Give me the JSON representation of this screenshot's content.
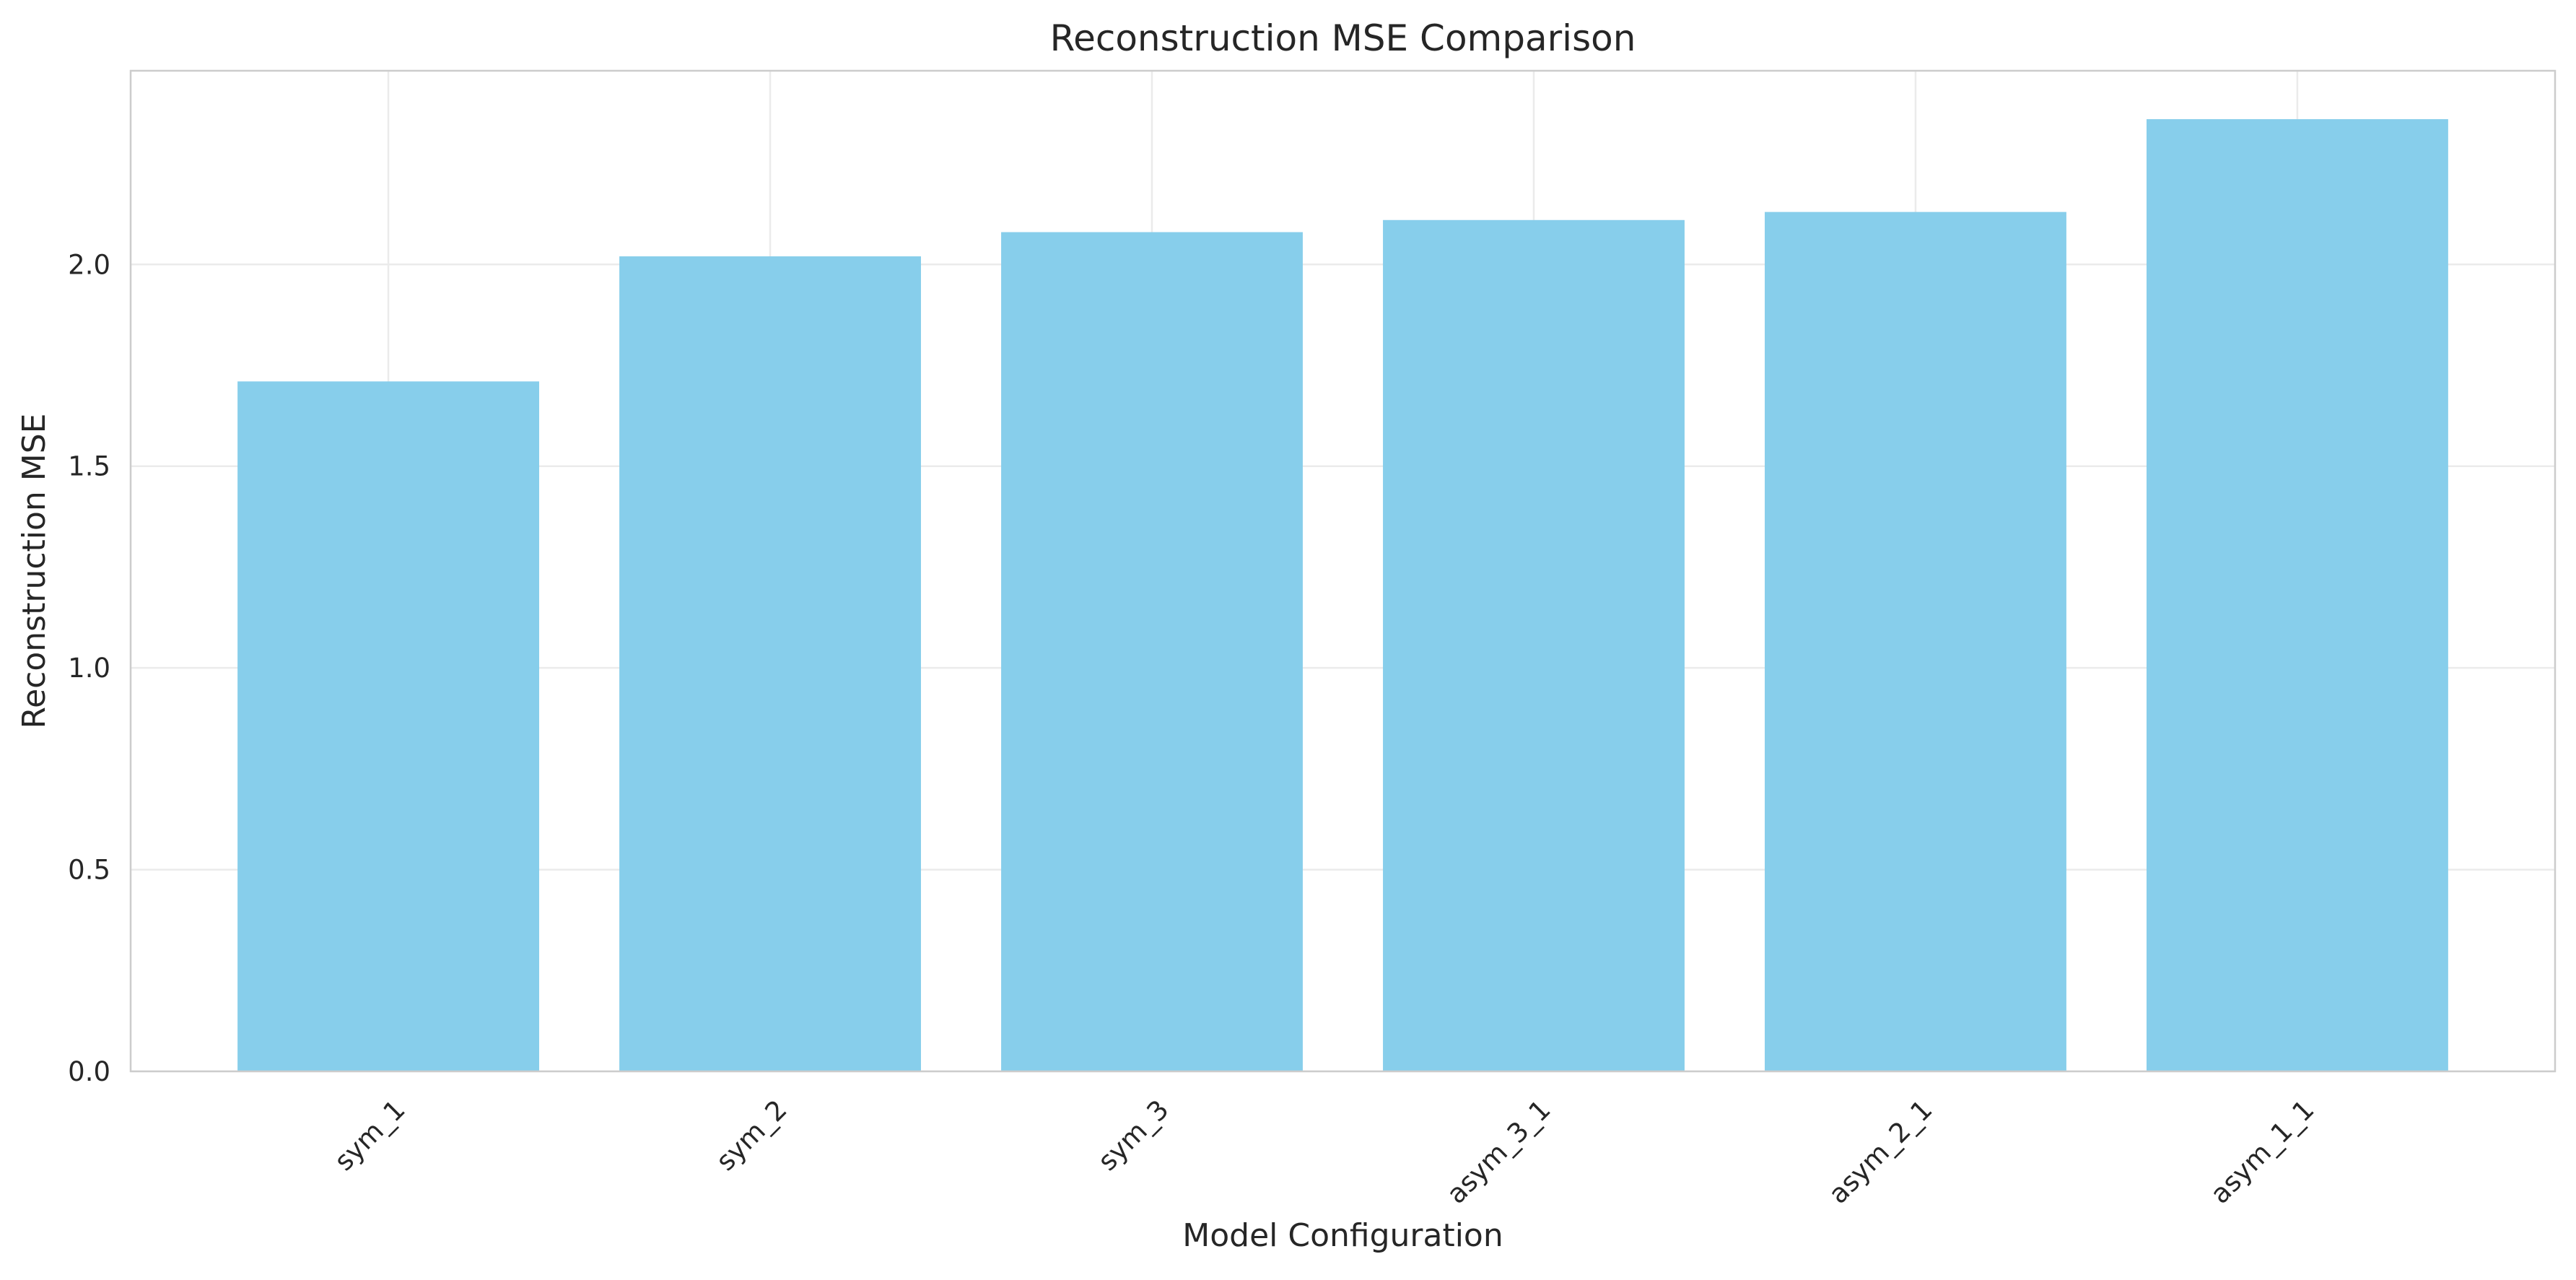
{
  "chart_data": {
    "type": "bar",
    "title": "Reconstruction MSE Comparison",
    "xlabel": "Model Configuration",
    "ylabel": "Reconstruction MSE",
    "categories": [
      "sym_1",
      "sym_2",
      "sym_3",
      "asym_3_1",
      "asym_2_1",
      "asym_1_1"
    ],
    "values": [
      1.71,
      2.02,
      2.08,
      2.11,
      2.13,
      2.36
    ],
    "ylim": [
      0,
      2.48
    ],
    "yticks": [
      0.0,
      0.5,
      1.0,
      1.5,
      2.0
    ],
    "ytick_labels": [
      "0.0",
      "0.5",
      "1.0",
      "1.5",
      "2.0"
    ],
    "grid": true,
    "legend": "none",
    "colors": {
      "bar": "#87CEEB",
      "grid": "#EBEBEB",
      "spine": "#CCCCCC",
      "text": "#262626"
    }
  }
}
